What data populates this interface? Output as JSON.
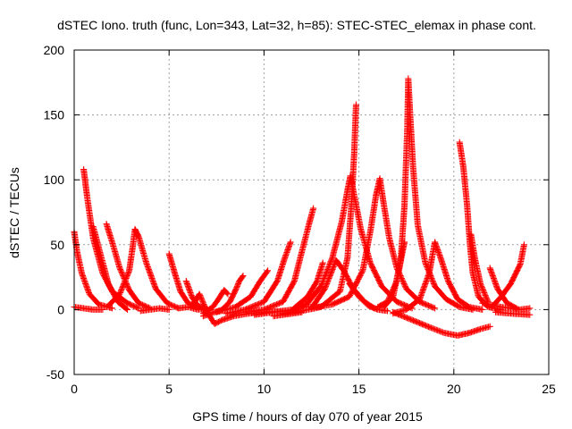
{
  "chart_data": {
    "type": "scatter",
    "title": "dSTEC Iono. truth (func, Lon=343, Lat=32, h=85): STEC-STEC_elemax in phase cont.",
    "xlabel": "GPS time / hours of day 070 of year 2015",
    "ylabel": "dSTEC  / TECUs",
    "xlim": [
      0,
      25
    ],
    "ylim": [
      -50,
      200
    ],
    "xticks": [
      0,
      5,
      10,
      15,
      20,
      25
    ],
    "yticks": [
      -50,
      0,
      50,
      100,
      150,
      200
    ],
    "grid": true,
    "marker": "plus",
    "color": "#ff0000",
    "series": [
      {
        "points": [
          [
            0.0,
            60
          ],
          [
            0.15,
            45
          ],
          [
            0.4,
            28
          ],
          [
            0.8,
            12
          ],
          [
            1.3,
            4
          ],
          [
            2.0,
            1
          ]
        ]
      },
      {
        "points": [
          [
            0.0,
            2
          ],
          [
            0.5,
            1
          ],
          [
            1.0,
            0
          ],
          [
            1.5,
            0
          ]
        ]
      },
      {
        "points": [
          [
            0.5,
            108
          ],
          [
            0.7,
            85
          ],
          [
            1.0,
            55
          ],
          [
            1.5,
            28
          ],
          [
            2.0,
            14
          ],
          [
            2.8,
            5
          ],
          [
            3.4,
            1
          ]
        ]
      },
      {
        "points": [
          [
            1.0,
            64
          ],
          [
            1.4,
            42
          ],
          [
            1.8,
            20
          ],
          [
            2.3,
            6
          ],
          [
            2.8,
            0
          ]
        ]
      },
      {
        "points": [
          [
            1.7,
            66
          ],
          [
            2.0,
            52
          ],
          [
            2.4,
            32
          ],
          [
            2.9,
            15
          ],
          [
            3.4,
            5
          ],
          [
            4.0,
            1
          ]
        ]
      },
      {
        "points": [
          [
            1.8,
            3
          ],
          [
            2.4,
            12
          ],
          [
            2.9,
            30
          ],
          [
            3.1,
            50
          ],
          [
            3.2,
            62
          ],
          [
            3.4,
            56
          ],
          [
            3.8,
            36
          ],
          [
            4.3,
            16
          ],
          [
            4.9,
            5
          ],
          [
            5.5,
            1
          ]
        ]
      },
      {
        "points": [
          [
            3.5,
            -1
          ],
          [
            4.0,
            0
          ],
          [
            4.5,
            1
          ],
          [
            5.0,
            0
          ]
        ]
      },
      {
        "points": [
          [
            5.0,
            43
          ],
          [
            5.3,
            28
          ],
          [
            5.6,
            14
          ],
          [
            6.0,
            5
          ],
          [
            6.5,
            1
          ]
        ]
      },
      {
        "points": [
          [
            5.5,
            1
          ],
          [
            6.0,
            2
          ],
          [
            6.5,
            0
          ],
          [
            7.0,
            1
          ]
        ]
      },
      {
        "points": [
          [
            5.9,
            22
          ],
          [
            6.2,
            10
          ],
          [
            6.5,
            3
          ],
          [
            7.0,
            0
          ]
        ]
      },
      {
        "points": [
          [
            6.3,
            5
          ],
          [
            6.6,
            12
          ],
          [
            7.0,
            -2
          ],
          [
            7.4,
            -11
          ],
          [
            7.8,
            -8
          ],
          [
            8.4,
            -5
          ],
          [
            9.2,
            -3
          ],
          [
            10.0,
            -2
          ],
          [
            11.0,
            -1
          ]
        ]
      },
      {
        "points": [
          [
            6.8,
            -3
          ],
          [
            7.3,
            2
          ],
          [
            7.6,
            8
          ],
          [
            7.9,
            15
          ],
          [
            8.1,
            12
          ]
        ]
      },
      {
        "points": [
          [
            6.8,
            -5
          ],
          [
            7.2,
            -3
          ],
          [
            7.8,
            0
          ],
          [
            8.2,
            6
          ],
          [
            8.5,
            15
          ],
          [
            8.7,
            22
          ],
          [
            8.9,
            26
          ]
        ]
      },
      {
        "points": [
          [
            7.5,
            -2
          ],
          [
            8.5,
            2
          ],
          [
            9.3,
            10
          ],
          [
            9.8,
            22
          ],
          [
            10.2,
            30
          ]
        ]
      },
      {
        "points": [
          [
            8.0,
            -3
          ],
          [
            9.0,
            0
          ],
          [
            10.0,
            6
          ],
          [
            10.7,
            22
          ],
          [
            11.1,
            40
          ],
          [
            11.4,
            52
          ]
        ]
      },
      {
        "points": [
          [
            9.0,
            -2
          ],
          [
            10.0,
            0
          ],
          [
            11.0,
            6
          ],
          [
            11.6,
            22
          ],
          [
            12.0,
            45
          ],
          [
            12.3,
            62
          ],
          [
            12.6,
            78
          ]
        ]
      },
      {
        "points": [
          [
            9.5,
            -4
          ],
          [
            10.5,
            -2
          ],
          [
            11.5,
            0
          ],
          [
            12.3,
            10
          ],
          [
            12.8,
            22
          ],
          [
            13.1,
            36
          ]
        ]
      },
      {
        "points": [
          [
            10.5,
            -5
          ],
          [
            11.5,
            -3
          ],
          [
            12.0,
            -2
          ]
        ]
      },
      {
        "points": [
          [
            11.0,
            -3
          ],
          [
            12.0,
            -1
          ],
          [
            13.0,
            2
          ],
          [
            14.0,
            14
          ],
          [
            14.4,
            40
          ],
          [
            14.6,
            80
          ],
          [
            14.75,
            120
          ],
          [
            14.85,
            158
          ]
        ]
      },
      {
        "points": [
          [
            11.5,
            -1
          ],
          [
            12.3,
            5
          ],
          [
            13.0,
            18
          ],
          [
            13.6,
            40
          ],
          [
            14.1,
            68
          ],
          [
            14.4,
            92
          ],
          [
            14.55,
            103
          ],
          [
            14.7,
            92
          ],
          [
            15.1,
            62
          ],
          [
            15.6,
            36
          ],
          [
            16.2,
            18
          ],
          [
            17.0,
            6
          ],
          [
            17.8,
            1
          ]
        ]
      },
      {
        "points": [
          [
            12.5,
            1
          ],
          [
            13.2,
            16
          ],
          [
            13.8,
            38
          ],
          [
            14.2,
            30
          ],
          [
            14.7,
            16
          ],
          [
            15.3,
            6
          ],
          [
            15.8,
            1
          ]
        ]
      },
      {
        "points": [
          [
            12.0,
            2
          ],
          [
            12.8,
            2
          ],
          [
            13.6,
            4
          ],
          [
            14.5,
            10
          ],
          [
            15.2,
            30
          ],
          [
            15.6,
            60
          ],
          [
            15.9,
            88
          ],
          [
            16.1,
            101
          ],
          [
            16.3,
            82
          ],
          [
            16.6,
            55
          ],
          [
            17.0,
            32
          ],
          [
            17.5,
            16
          ],
          [
            18.2,
            6
          ],
          [
            19.0,
            1
          ]
        ]
      },
      {
        "points": [
          [
            14.5,
            20
          ],
          [
            15.0,
            10
          ],
          [
            15.5,
            3
          ],
          [
            16.0,
            0
          ],
          [
            16.5,
            -1
          ]
        ]
      },
      {
        "points": [
          [
            16.0,
            2
          ],
          [
            16.5,
            6
          ],
          [
            17.0,
            22
          ],
          [
            17.3,
            45
          ],
          [
            17.4,
            52
          ]
        ]
      },
      {
        "points": [
          [
            16.3,
            2
          ],
          [
            16.8,
            10
          ],
          [
            17.2,
            38
          ],
          [
            17.4,
            80
          ],
          [
            17.55,
            140
          ],
          [
            17.6,
            178
          ],
          [
            17.7,
            150
          ],
          [
            17.85,
            110
          ],
          [
            18.1,
            65
          ],
          [
            18.5,
            36
          ],
          [
            19.0,
            18
          ],
          [
            19.6,
            8
          ],
          [
            20.3,
            2
          ],
          [
            21.0,
            0
          ]
        ]
      },
      {
        "points": [
          [
            16.8,
            -3
          ],
          [
            17.5,
            0
          ],
          [
            18.2,
            8
          ],
          [
            18.7,
            28
          ],
          [
            19.0,
            52
          ],
          [
            19.3,
            40
          ],
          [
            19.7,
            22
          ],
          [
            20.2,
            8
          ],
          [
            20.8,
            2
          ],
          [
            21.5,
            0
          ]
        ]
      },
      {
        "points": [
          [
            16.8,
            -2
          ],
          [
            17.8,
            -8
          ],
          [
            18.8,
            -14
          ],
          [
            19.5,
            -18
          ],
          [
            20.2,
            -20
          ],
          [
            20.8,
            -18
          ],
          [
            21.4,
            -15
          ],
          [
            21.9,
            -13
          ]
        ]
      },
      {
        "points": [
          [
            20.3,
            129
          ],
          [
            20.5,
            110
          ],
          [
            20.7,
            80
          ],
          [
            20.85,
            50
          ],
          [
            21.0,
            28
          ],
          [
            21.3,
            10
          ],
          [
            21.8,
            2
          ],
          [
            22.5,
            0
          ]
        ]
      },
      {
        "points": [
          [
            20.9,
            58
          ],
          [
            21.1,
            40
          ],
          [
            21.4,
            20
          ],
          [
            21.8,
            6
          ]
        ]
      },
      {
        "points": [
          [
            21.9,
            32
          ],
          [
            22.3,
            16
          ],
          [
            22.8,
            5
          ],
          [
            23.3,
            1
          ]
        ]
      },
      {
        "points": [
          [
            22.0,
            2
          ],
          [
            22.5,
            10
          ],
          [
            23.0,
            20
          ],
          [
            23.5,
            35
          ],
          [
            23.7,
            50
          ]
        ]
      },
      {
        "points": [
          [
            22.2,
            -2
          ],
          [
            23.0,
            -3
          ],
          [
            24.0,
            -4
          ]
        ]
      },
      {
        "points": [
          [
            21.5,
            5
          ],
          [
            22.5,
            2
          ],
          [
            23.5,
            0
          ],
          [
            24.0,
            1
          ]
        ]
      }
    ]
  }
}
